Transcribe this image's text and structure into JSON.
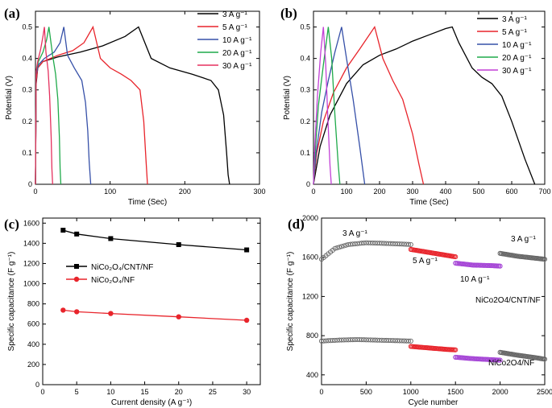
{
  "chart_data": [
    {
      "panel": "(a)",
      "type": "line",
      "xlabel": "Time (Sec)",
      "ylabel": "Potential (V)",
      "xlim": [
        0,
        300
      ],
      "ylim": [
        0,
        0.55
      ],
      "xticks": [
        0,
        100,
        200,
        300
      ],
      "yticks": [
        0.0,
        0.1,
        0.2,
        0.3,
        0.4,
        0.5
      ],
      "legend_location": "top-right",
      "series": [
        {
          "name": "3 A g⁻¹",
          "color": "#000000",
          "x": [
            0,
            1,
            3,
            10,
            30,
            60,
            90,
            120,
            138,
            155,
            180,
            210,
            235,
            245,
            252,
            256,
            258,
            260
          ],
          "y": [
            0,
            0.32,
            0.37,
            0.39,
            0.405,
            0.42,
            0.44,
            0.47,
            0.5,
            0.4,
            0.37,
            0.35,
            0.33,
            0.3,
            0.22,
            0.1,
            0.03,
            0
          ]
        },
        {
          "name": "5 A g⁻¹",
          "color": "#e8242b",
          "x": [
            0,
            1,
            3,
            10,
            30,
            50,
            65,
            77,
            87,
            100,
            115,
            128,
            140,
            145,
            148,
            150
          ],
          "y": [
            0,
            0.33,
            0.37,
            0.39,
            0.41,
            0.425,
            0.45,
            0.5,
            0.4,
            0.37,
            0.35,
            0.33,
            0.3,
            0.2,
            0.08,
            0
          ]
        },
        {
          "name": "10 A g⁻¹",
          "color": "#3650a8",
          "x": [
            0,
            1,
            4,
            12,
            25,
            33,
            38,
            43,
            52,
            62,
            67,
            70,
            72,
            74
          ],
          "y": [
            0,
            0.35,
            0.38,
            0.4,
            0.42,
            0.45,
            0.5,
            0.41,
            0.37,
            0.33,
            0.26,
            0.17,
            0.07,
            0
          ]
        },
        {
          "name": "20 A g⁻¹",
          "color": "#1faa4a",
          "x": [
            0,
            1,
            4,
            10,
            15,
            18,
            23,
            27,
            30,
            32,
            33,
            34
          ],
          "y": [
            0,
            0.36,
            0.39,
            0.42,
            0.46,
            0.5,
            0.41,
            0.35,
            0.27,
            0.15,
            0.05,
            0
          ]
        },
        {
          "name": "30 A g⁻¹",
          "color": "#e5305e",
          "x": [
            0,
            1,
            3,
            7,
            10,
            12,
            14,
            17,
            19,
            21,
            22,
            23
          ],
          "y": [
            0,
            0.36,
            0.39,
            0.43,
            0.47,
            0.5,
            0.42,
            0.36,
            0.28,
            0.15,
            0.05,
            0
          ]
        }
      ]
    },
    {
      "panel": "(b)",
      "type": "line",
      "xlabel": "Time (Sec)",
      "ylabel": "Potential (V)",
      "xlim": [
        0,
        700
      ],
      "ylim": [
        0,
        0.55
      ],
      "xticks": [
        0,
        100,
        200,
        300,
        400,
        500,
        600,
        700
      ],
      "yticks": [
        0.0,
        0.1,
        0.2,
        0.3,
        0.4,
        0.5
      ],
      "legend_location": "top-right",
      "series": [
        {
          "name": "3 A g⁻¹",
          "color": "#000000",
          "x": [
            0,
            20,
            50,
            100,
            150,
            200,
            250,
            300,
            350,
            400,
            420,
            440,
            480,
            510,
            540,
            570,
            600,
            640,
            670
          ],
          "y": [
            0,
            0.12,
            0.22,
            0.32,
            0.38,
            0.41,
            0.43,
            0.455,
            0.475,
            0.495,
            0.5,
            0.45,
            0.37,
            0.34,
            0.32,
            0.28,
            0.2,
            0.08,
            0
          ]
        },
        {
          "name": "5 A g⁻¹",
          "color": "#e8242b",
          "x": [
            0,
            10,
            30,
            60,
            100,
            140,
            185,
            210,
            240,
            270,
            300,
            320,
            333
          ],
          "y": [
            0,
            0.1,
            0.2,
            0.29,
            0.37,
            0.43,
            0.5,
            0.4,
            0.33,
            0.27,
            0.16,
            0.06,
            0
          ]
        },
        {
          "name": "10 A g⁻¹",
          "color": "#3650a8",
          "x": [
            0,
            8,
            25,
            45,
            65,
            85,
            100,
            120,
            140,
            155
          ],
          "y": [
            0,
            0.1,
            0.23,
            0.33,
            0.42,
            0.5,
            0.4,
            0.27,
            0.12,
            0
          ]
        },
        {
          "name": "20 A g⁻¹",
          "color": "#1faa4a",
          "x": [
            0,
            5,
            15,
            30,
            45,
            55,
            65,
            75,
            80
          ],
          "y": [
            0,
            0.1,
            0.25,
            0.38,
            0.5,
            0.4,
            0.22,
            0.06,
            0
          ]
        },
        {
          "name": "30 A g⁻¹",
          "color": "#c23fd6",
          "x": [
            0,
            4,
            12,
            22,
            30,
            37,
            44,
            50,
            54
          ],
          "y": [
            0,
            0.12,
            0.28,
            0.42,
            0.5,
            0.38,
            0.2,
            0.06,
            0
          ]
        }
      ]
    },
    {
      "panel": "(c)",
      "type": "line",
      "xlabel": "Current density (A g⁻¹)",
      "ylabel": "Specific capacitance (F g⁻¹)",
      "xlim": [
        0,
        32
      ],
      "ylim": [
        0,
        1650
      ],
      "xticks": [
        0,
        5,
        10,
        15,
        20,
        25,
        30
      ],
      "yticks": [
        0,
        200,
        400,
        600,
        800,
        1000,
        1200,
        1400,
        1600
      ],
      "legend_location": "center-left",
      "series": [
        {
          "name": "NiCo₂O₄/CNT/NF",
          "color": "#000000",
          "marker": "square",
          "x": [
            3,
            5,
            10,
            20,
            30
          ],
          "y": [
            1530,
            1492,
            1447,
            1387,
            1335
          ]
        },
        {
          "name": "NiCo₂O₄/NF",
          "color": "#e8242b",
          "marker": "circle",
          "x": [
            3,
            5,
            10,
            20,
            30
          ],
          "y": [
            738,
            722,
            705,
            672,
            638
          ]
        }
      ]
    },
    {
      "panel": "(d)",
      "type": "scatter",
      "xlabel": "Cycle number",
      "ylabel": "Specific capacitance (F g⁻¹)",
      "xlim": [
        0,
        2500
      ],
      "ylim": [
        300,
        2000
      ],
      "xticks": [
        0,
        500,
        1000,
        1500,
        2000,
        2500
      ],
      "yticks": [
        400,
        800,
        1200,
        1600,
        2000
      ],
      "annotations": [
        "3 A g⁻¹",
        "5 A g⁻¹",
        "10 A g⁻¹",
        "3 A g⁻¹",
        "NiCo2O4/CNT/NF",
        "NiCo2O4/NF"
      ],
      "series": [
        {
          "name": "NiCo2O4/CNT/NF",
          "segments": [
            {
              "color": "#666666",
              "x": [
                0,
                150,
                300,
                500,
                700,
                900,
                1000
              ],
              "y": [
                1580,
                1690,
                1730,
                1748,
                1742,
                1735,
                1730
              ]
            },
            {
              "color": "#e8242b",
              "x": [
                1000,
                1200,
                1400,
                1500
              ],
              "y": [
                1680,
                1650,
                1620,
                1605
              ]
            },
            {
              "color": "#a545d6",
              "x": [
                1500,
                1700,
                1900,
                2000
              ],
              "y": [
                1540,
                1520,
                1515,
                1510
              ]
            },
            {
              "color": "#666666",
              "x": [
                2000,
                2200,
                2400,
                2500
              ],
              "y": [
                1640,
                1610,
                1590,
                1580
              ]
            }
          ]
        },
        {
          "name": "NiCo2O4/NF",
          "segments": [
            {
              "color": "#666666",
              "x": [
                0,
                200,
                400,
                600,
                800,
                1000
              ],
              "y": [
                745,
                755,
                760,
                755,
                750,
                745
              ]
            },
            {
              "color": "#e8242b",
              "x": [
                1000,
                1200,
                1400,
                1500
              ],
              "y": [
                690,
                675,
                660,
                655
              ]
            },
            {
              "color": "#a545d6",
              "x": [
                1500,
                1700,
                1900,
                2000
              ],
              "y": [
                580,
                565,
                555,
                550
              ]
            },
            {
              "color": "#666666",
              "x": [
                2000,
                2200,
                2400,
                2500
              ],
              "y": [
                630,
                600,
                575,
                560
              ]
            }
          ]
        }
      ]
    }
  ]
}
